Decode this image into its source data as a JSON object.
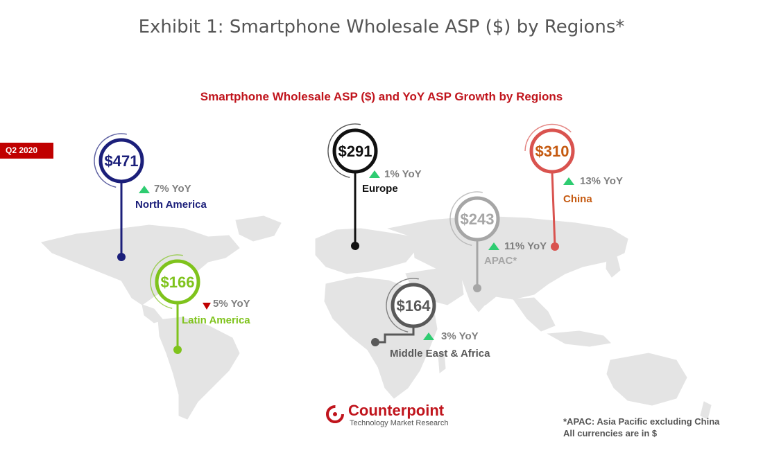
{
  "title": "Exhibit 1: Smartphone Wholesale ASP ($) by Regions*",
  "chart_data": {
    "type": "map",
    "title": "Smartphone Wholesale ASP ($) and YoY ASP Growth by Regions",
    "period": "Q2 2020",
    "regions": [
      {
        "name": "North America",
        "asp": 471,
        "asp_label": "$471",
        "yoy": "7% YoY",
        "yoy_pct": 7,
        "direction": "up",
        "color": "#1b1f7a"
      },
      {
        "name": "Europe",
        "asp": 291,
        "asp_label": "$291",
        "yoy": "1% YoY",
        "yoy_pct": 1,
        "direction": "up",
        "color": "#111111"
      },
      {
        "name": "China",
        "asp": 310,
        "asp_label": "$310",
        "yoy": "13% YoY",
        "yoy_pct": 13,
        "direction": "up",
        "color": "#d9534f"
      },
      {
        "name": "APAC*",
        "asp": 243,
        "asp_label": "$243",
        "yoy": "11% YoY",
        "yoy_pct": 11,
        "direction": "up",
        "color": "#a6a6a6"
      },
      {
        "name": "Latin America",
        "asp": 166,
        "asp_label": "$166",
        "yoy": "5% YoY",
        "yoy_pct": -5,
        "direction": "down",
        "color": "#7fc31c"
      },
      {
        "name": "Middle East & Africa",
        "asp": 164,
        "asp_label": "$164",
        "yoy": "3% YoY",
        "yoy_pct": 3,
        "direction": "up",
        "color": "#595959"
      }
    ]
  },
  "footnote": {
    "line1": "*APAC: Asia Pacific excluding China",
    "line2": "All currencies are in $"
  },
  "logo": {
    "name": "Counterpoint",
    "tagline": "Technology Market Research"
  },
  "colors": {
    "up_arrow": "#2ecc71",
    "down_arrow": "#c00000",
    "map": "#e4e4e4"
  }
}
